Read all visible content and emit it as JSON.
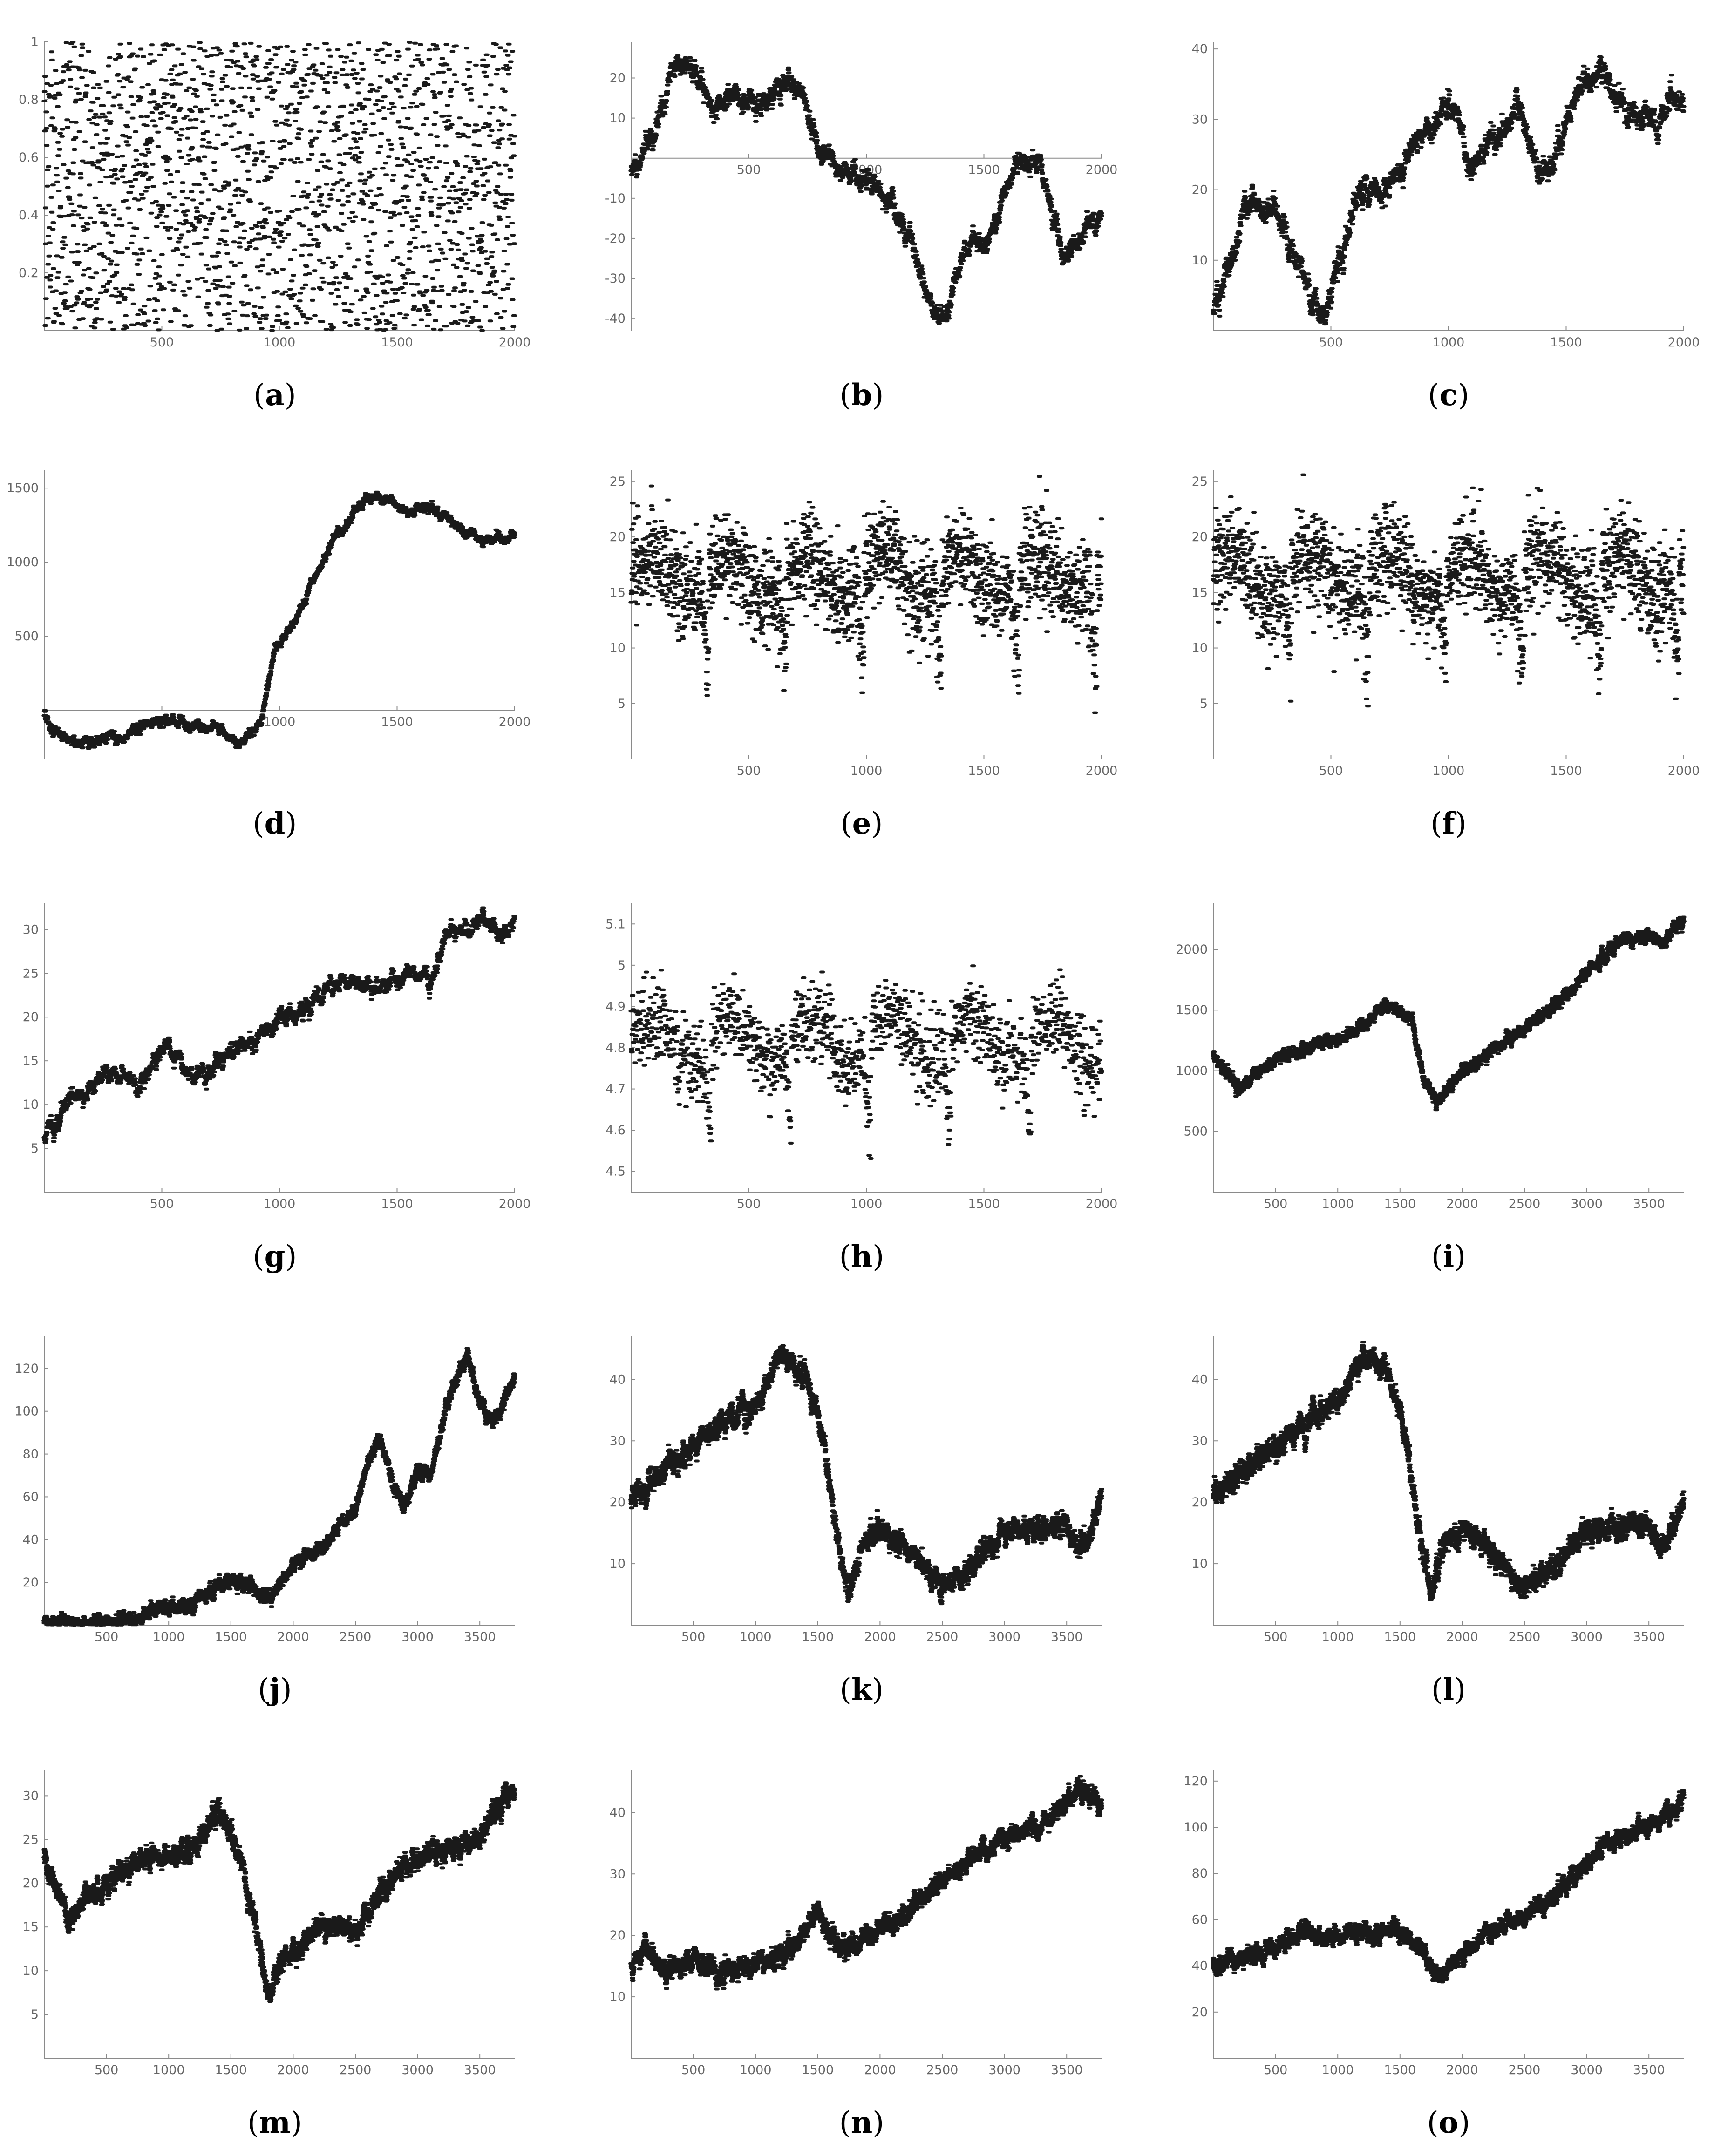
{
  "figure": {
    "point_color": "#1a1a1a",
    "axis_color": "#8a8a8a",
    "tick_label_color": "#666666"
  },
  "chart_data": [
    {
      "type": "scatter",
      "label": "a",
      "xlim": [
        0,
        2000
      ],
      "ylim": [
        0,
        1.0
      ],
      "xticks": [
        500,
        1000,
        1500,
        2000
      ],
      "yticks": [
        0.2,
        0.4,
        0.6,
        0.8,
        1.0
      ],
      "points": 2000,
      "kind": "uniform",
      "anchors": [
        [
          0,
          0.5
        ],
        [
          2000,
          0.5
        ]
      ]
    },
    {
      "type": "scatter",
      "label": "b",
      "xlim": [
        0,
        2000
      ],
      "ylim": [
        -43,
        29
      ],
      "xticks": [
        500,
        1000,
        1500,
        2000
      ],
      "yticks": [
        -40,
        -30,
        -20,
        -10,
        10,
        20
      ],
      "points": 2000,
      "kind": "path",
      "noise": 1.4,
      "anchors": [
        [
          0,
          -3
        ],
        [
          80,
          5
        ],
        [
          200,
          25
        ],
        [
          270,
          22
        ],
        [
          350,
          12
        ],
        [
          440,
          16
        ],
        [
          550,
          13
        ],
        [
          650,
          18
        ],
        [
          720,
          17
        ],
        [
          800,
          2
        ],
        [
          880,
          -2
        ],
        [
          1000,
          -5
        ],
        [
          1100,
          -10
        ],
        [
          1200,
          -22
        ],
        [
          1280,
          -38
        ],
        [
          1330,
          -40
        ],
        [
          1440,
          -20
        ],
        [
          1520,
          -22
        ],
        [
          1640,
          0
        ],
        [
          1740,
          -2
        ],
        [
          1840,
          -26
        ],
        [
          1920,
          -18
        ],
        [
          2000,
          -14
        ]
      ]
    },
    {
      "type": "scatter",
      "label": "c",
      "xlim": [
        0,
        2000
      ],
      "ylim": [
        0,
        41
      ],
      "xticks": [
        500,
        1000,
        1500,
        2000
      ],
      "yticks": [
        10,
        20,
        30,
        40
      ],
      "points": 2000,
      "kind": "path",
      "noise": 1.0,
      "anchors": [
        [
          0,
          3
        ],
        [
          80,
          10
        ],
        [
          150,
          19
        ],
        [
          260,
          17
        ],
        [
          350,
          10
        ],
        [
          430,
          4
        ],
        [
          470,
          2
        ],
        [
          540,
          10
        ],
        [
          620,
          19
        ],
        [
          760,
          21
        ],
        [
          900,
          28
        ],
        [
          1000,
          33
        ],
        [
          1100,
          24
        ],
        [
          1200,
          27
        ],
        [
          1300,
          32
        ],
        [
          1380,
          23
        ],
        [
          1440,
          22
        ],
        [
          1530,
          33
        ],
        [
          1600,
          36
        ],
        [
          1660,
          37
        ],
        [
          1760,
          31
        ],
        [
          1880,
          30
        ],
        [
          2000,
          33
        ]
      ]
    },
    {
      "type": "scatter",
      "label": "d",
      "xlim": [
        0,
        2000
      ],
      "ylim": [
        -330,
        1620
      ],
      "xticks": [
        500,
        1000,
        1500,
        2000
      ],
      "yticks": [
        500,
        1000,
        1500
      ],
      "points": 2000,
      "kind": "path",
      "noise": 18,
      "anchors": [
        [
          0,
          0
        ],
        [
          30,
          -120
        ],
        [
          130,
          -220
        ],
        [
          330,
          -180
        ],
        [
          480,
          -60
        ],
        [
          640,
          -100
        ],
        [
          740,
          -120
        ],
        [
          820,
          -240
        ],
        [
          920,
          -100
        ],
        [
          980,
          400
        ],
        [
          1050,
          550
        ],
        [
          1150,
          900
        ],
        [
          1250,
          1200
        ],
        [
          1350,
          1420
        ],
        [
          1450,
          1430
        ],
        [
          1550,
          1340
        ],
        [
          1650,
          1380
        ],
        [
          1750,
          1260
        ],
        [
          1860,
          1150
        ],
        [
          2000,
          1180
        ]
      ]
    },
    {
      "type": "scatter",
      "label": "e",
      "xlim": [
        0,
        2000
      ],
      "ylim": [
        0,
        26
      ],
      "xticks": [
        500,
        1000,
        1500,
        2000
      ],
      "yticks": [
        5,
        10,
        15,
        20,
        25
      ],
      "points": 2000,
      "kind": "wave",
      "base": 16.5,
      "amp": 2.5,
      "period": 330,
      "noise": 2.2
    },
    {
      "type": "scatter",
      "label": "f",
      "xlim": [
        0,
        2000
      ],
      "ylim": [
        0,
        26
      ],
      "xticks": [
        500,
        1000,
        1500,
        2000
      ],
      "yticks": [
        5,
        10,
        15,
        20,
        25
      ],
      "points": 2000,
      "kind": "wave",
      "base": 16.5,
      "amp": 2.5,
      "period": 330,
      "noise": 2.2
    },
    {
      "type": "scatter",
      "label": "g",
      "xlim": [
        0,
        2000
      ],
      "ylim": [
        0,
        33
      ],
      "xticks": [
        500,
        1000,
        1500,
        2000
      ],
      "yticks": [
        5,
        10,
        15,
        20,
        25,
        30
      ],
      "points": 2000,
      "kind": "path",
      "noise": 0.5,
      "anchors": [
        [
          0,
          6
        ],
        [
          100,
          10
        ],
        [
          300,
          14
        ],
        [
          400,
          12
        ],
        [
          520,
          17
        ],
        [
          620,
          13
        ],
        [
          700,
          14
        ],
        [
          900,
          18
        ],
        [
          1100,
          21
        ],
        [
          1250,
          24
        ],
        [
          1400,
          23
        ],
        [
          1550,
          25
        ],
        [
          1650,
          24
        ],
        [
          1700,
          29
        ],
        [
          1800,
          30
        ],
        [
          1900,
          31
        ],
        [
          1950,
          29
        ],
        [
          2000,
          31
        ]
      ]
    },
    {
      "type": "scatter",
      "label": "h",
      "xlim": [
        0,
        2000
      ],
      "ylim": [
        4.45,
        5.15
      ],
      "xticks": [
        500,
        1000,
        1500,
        2000
      ],
      "yticks": [
        4.5,
        4.6,
        4.7,
        4.8,
        4.9,
        5.0,
        5.1
      ],
      "points": 1400,
      "kind": "wave",
      "base": 4.82,
      "amp": 0.07,
      "period": 340,
      "noise": 0.05
    },
    {
      "type": "scatter",
      "label": "i",
      "xlim": [
        0,
        3780
      ],
      "ylim": [
        0,
        2380
      ],
      "xticks": [
        500,
        1000,
        1500,
        2000,
        2500,
        3000,
        3500
      ],
      "yticks": [
        500,
        1000,
        1500,
        2000
      ],
      "points": 3780,
      "kind": "path",
      "noise": 25,
      "anchors": [
        [
          0,
          1150
        ],
        [
          200,
          850
        ],
        [
          500,
          1100
        ],
        [
          800,
          1200
        ],
        [
          1100,
          1300
        ],
        [
          1400,
          1550
        ],
        [
          1600,
          1400
        ],
        [
          1700,
          900
        ],
        [
          1800,
          750
        ],
        [
          2000,
          1000
        ],
        [
          2300,
          1200
        ],
        [
          2500,
          1350
        ],
        [
          2700,
          1500
        ],
        [
          3000,
          1800
        ],
        [
          3300,
          2100
        ],
        [
          3500,
          2100
        ],
        [
          3600,
          2050
        ],
        [
          3780,
          2250
        ]
      ]
    },
    {
      "type": "scatter",
      "label": "j",
      "xlim": [
        0,
        3780
      ],
      "ylim": [
        0,
        135
      ],
      "xticks": [
        500,
        1000,
        1500,
        2000,
        2500,
        3000,
        3500
      ],
      "yticks": [
        20,
        40,
        60,
        80,
        100,
        120
      ],
      "points": 3780,
      "kind": "path",
      "noise": 1.6,
      "anchors": [
        [
          0,
          1
        ],
        [
          500,
          1
        ],
        [
          800,
          4
        ],
        [
          1000,
          9
        ],
        [
          1200,
          10
        ],
        [
          1500,
          22
        ],
        [
          1600,
          20
        ],
        [
          1800,
          12
        ],
        [
          2000,
          28
        ],
        [
          2300,
          40
        ],
        [
          2500,
          55
        ],
        [
          2600,
          75
        ],
        [
          2700,
          88
        ],
        [
          2800,
          65
        ],
        [
          2900,
          55
        ],
        [
          3000,
          72
        ],
        [
          3100,
          70
        ],
        [
          3200,
          95
        ],
        [
          3300,
          115
        ],
        [
          3400,
          125
        ],
        [
          3500,
          105
        ],
        [
          3600,
          95
        ],
        [
          3780,
          115
        ]
      ]
    },
    {
      "type": "scatter",
      "label": "k",
      "xlim": [
        0,
        3780
      ],
      "ylim": [
        0,
        47
      ],
      "xticks": [
        500,
        1000,
        1500,
        2000,
        2500,
        3000,
        3500
      ],
      "yticks": [
        10,
        20,
        30,
        40
      ],
      "points": 3780,
      "kind": "path",
      "noise": 0.9,
      "anchors": [
        [
          0,
          21
        ],
        [
          200,
          24
        ],
        [
          500,
          29
        ],
        [
          800,
          34
        ],
        [
          1000,
          36
        ],
        [
          1200,
          44
        ],
        [
          1400,
          41
        ],
        [
          1550,
          30
        ],
        [
          1650,
          15
        ],
        [
          1750,
          5
        ],
        [
          1850,
          13
        ],
        [
          2000,
          16
        ],
        [
          2200,
          13
        ],
        [
          2400,
          8
        ],
        [
          2500,
          6
        ],
        [
          2700,
          9
        ],
        [
          3000,
          15
        ],
        [
          3300,
          16
        ],
        [
          3500,
          16
        ],
        [
          3600,
          13
        ],
        [
          3700,
          15
        ],
        [
          3780,
          22
        ]
      ]
    },
    {
      "type": "scatter",
      "label": "l",
      "xlim": [
        0,
        3780
      ],
      "ylim": [
        0,
        47
      ],
      "xticks": [
        500,
        1000,
        1500,
        2000,
        2500,
        3000,
        3500
      ],
      "yticks": [
        10,
        20,
        30,
        40
      ],
      "points": 3780,
      "kind": "path",
      "noise": 0.9,
      "anchors": [
        [
          0,
          21
        ],
        [
          200,
          24
        ],
        [
          500,
          29
        ],
        [
          800,
          34
        ],
        [
          1000,
          36
        ],
        [
          1200,
          44
        ],
        [
          1400,
          41
        ],
        [
          1550,
          30
        ],
        [
          1650,
          15
        ],
        [
          1750,
          5
        ],
        [
          1850,
          13
        ],
        [
          2000,
          16
        ],
        [
          2200,
          13
        ],
        [
          2400,
          8
        ],
        [
          2500,
          6
        ],
        [
          2700,
          9
        ],
        [
          3000,
          15
        ],
        [
          3300,
          16
        ],
        [
          3500,
          16
        ],
        [
          3600,
          13
        ],
        [
          3700,
          15
        ],
        [
          3780,
          22
        ]
      ]
    },
    {
      "type": "scatter",
      "label": "m",
      "xlim": [
        0,
        3780
      ],
      "ylim": [
        0,
        33
      ],
      "xticks": [
        500,
        1000,
        1500,
        2000,
        2500,
        3000,
        3500
      ],
      "yticks": [
        5,
        10,
        15,
        20,
        25,
        30
      ],
      "points": 3780,
      "kind": "path",
      "noise": 0.6,
      "anchors": [
        [
          0,
          23
        ],
        [
          100,
          19
        ],
        [
          200,
          16
        ],
        [
          400,
          19
        ],
        [
          600,
          21
        ],
        [
          800,
          23
        ],
        [
          1000,
          23
        ],
        [
          1200,
          24
        ],
        [
          1400,
          28
        ],
        [
          1500,
          26
        ],
        [
          1600,
          21
        ],
        [
          1700,
          15
        ],
        [
          1800,
          7
        ],
        [
          1900,
          11
        ],
        [
          2000,
          12
        ],
        [
          2200,
          15
        ],
        [
          2400,
          15
        ],
        [
          2500,
          14
        ],
        [
          2700,
          19
        ],
        [
          3000,
          23
        ],
        [
          3300,
          24
        ],
        [
          3500,
          25
        ],
        [
          3600,
          28
        ],
        [
          3780,
          31
        ]
      ]
    },
    {
      "type": "scatter",
      "label": "n",
      "xlim": [
        0,
        3780
      ],
      "ylim": [
        0,
        47
      ],
      "xticks": [
        500,
        1000,
        1500,
        2000,
        2500,
        3000,
        3500
      ],
      "yticks": [
        10,
        20,
        30,
        40
      ],
      "points": 3780,
      "kind": "path",
      "noise": 0.8,
      "anchors": [
        [
          0,
          15
        ],
        [
          100,
          18
        ],
        [
          300,
          14
        ],
        [
          500,
          16
        ],
        [
          700,
          14
        ],
        [
          1000,
          15
        ],
        [
          1300,
          18
        ],
        [
          1500,
          24
        ],
        [
          1700,
          17
        ],
        [
          1900,
          20
        ],
        [
          2100,
          22
        ],
        [
          2400,
          27
        ],
        [
          2700,
          32
        ],
        [
          3000,
          36
        ],
        [
          3300,
          38
        ],
        [
          3500,
          41
        ],
        [
          3600,
          44
        ],
        [
          3780,
          41
        ]
      ]
    },
    {
      "type": "scatter",
      "label": "o",
      "xlim": [
        0,
        3780
      ],
      "ylim": [
        0,
        125
      ],
      "xticks": [
        500,
        1000,
        1500,
        2000,
        2500,
        3000,
        3500
      ],
      "yticks": [
        20,
        40,
        60,
        80,
        100,
        120
      ],
      "points": 3780,
      "kind": "path",
      "noise": 1.8,
      "anchors": [
        [
          0,
          40
        ],
        [
          300,
          44
        ],
        [
          500,
          48
        ],
        [
          700,
          55
        ],
        [
          900,
          52
        ],
        [
          1100,
          56
        ],
        [
          1300,
          54
        ],
        [
          1500,
          56
        ],
        [
          1700,
          46
        ],
        [
          1800,
          35
        ],
        [
          2000,
          45
        ],
        [
          2200,
          55
        ],
        [
          2500,
          62
        ],
        [
          2700,
          68
        ],
        [
          3000,
          85
        ],
        [
          3200,
          95
        ],
        [
          3500,
          100
        ],
        [
          3700,
          108
        ],
        [
          3780,
          115
        ]
      ]
    }
  ]
}
